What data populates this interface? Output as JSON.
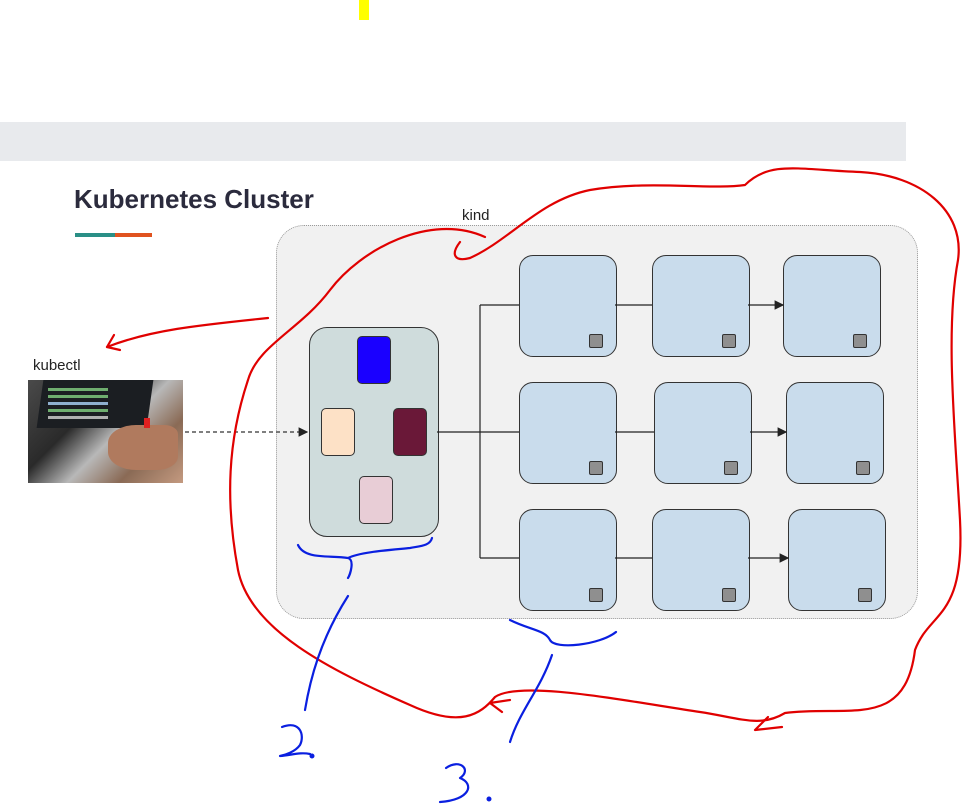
{
  "title": "Kubernetes Cluster",
  "cluster_label": "kind",
  "client_label": "kubectl",
  "colors": {
    "accent_teal": "#2a8f86",
    "accent_orange": "#e0531f",
    "cluster_bg": "#f1f1f1",
    "control_plane": "#cfdcdc",
    "node": "#c9dcec",
    "annotation_red": "#e00000",
    "annotation_blue": "#0a1fe0",
    "pods": [
      "#1a00ff",
      "#fde1c6",
      "#6a1838",
      "#e8cdd6"
    ]
  },
  "annotations": {
    "number_two": "2.",
    "number_three": "3."
  }
}
